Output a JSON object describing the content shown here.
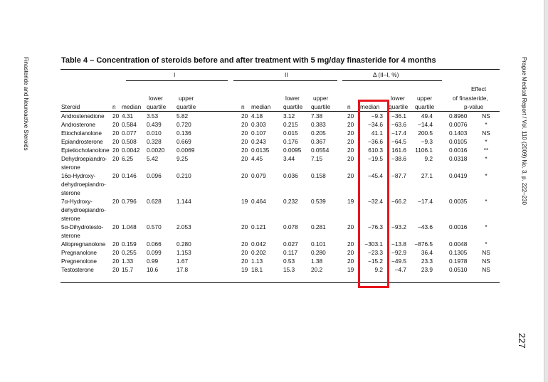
{
  "side_left": "Finasteride and Neuroactive Steroids",
  "side_right": "Prague Medical Report / Vol. 110 (2009) No. 3, p. 222–230",
  "page_number": "227",
  "table": {
    "title": "Table 4 – Concentration of steroids before and after treatment with 5 mg/day finasteride for 4 months",
    "groups": [
      "I",
      "II",
      "Δ (II–I, %)"
    ],
    "headers": {
      "steroid": "Steroid",
      "n": "n",
      "median": "median",
      "lower": [
        "lower",
        "quartile"
      ],
      "upper": [
        "upper",
        "quartile"
      ],
      "effect": [
        "Effect",
        "of finasteride,",
        "p-value"
      ]
    },
    "highlight_color": "#e8161e",
    "rows": [
      {
        "name": [
          "Androstenedione"
        ],
        "I": [
          "20",
          "4.31",
          "3.53",
          "5.82"
        ],
        "II": [
          "20",
          "4.18",
          "3.12",
          "7.38"
        ],
        "D": [
          "20",
          "−9.3",
          "−36.1",
          "49.4"
        ],
        "p": "0.8960",
        "sig": "NS"
      },
      {
        "name": [
          "Androsterone"
        ],
        "I": [
          "20",
          "0.584",
          "0.439",
          "0.720"
        ],
        "II": [
          "20",
          "0.303",
          "0.215",
          "0.383"
        ],
        "D": [
          "20",
          "−34.6",
          "−63.6",
          "−14.4"
        ],
        "p": "0.0076",
        "sig": "*"
      },
      {
        "name": [
          "Etiocholanolone"
        ],
        "I": [
          "20",
          "0.077",
          "0.010",
          "0.136"
        ],
        "II": [
          "20",
          "0.107",
          "0.015",
          "0.205"
        ],
        "D": [
          "20",
          "41.1",
          "−17.4",
          "200.5"
        ],
        "p": "0.1403",
        "sig": "NS"
      },
      {
        "name": [
          "Epiandrosterone"
        ],
        "I": [
          "20",
          "0.508",
          "0.328",
          "0.669"
        ],
        "II": [
          "20",
          "0.243",
          "0.176",
          "0.367"
        ],
        "D": [
          "20",
          "−36.6",
          "−64.5",
          "−9.3"
        ],
        "p": "0.0105",
        "sig": "*"
      },
      {
        "name": [
          "Epietiocholanolone"
        ],
        "I": [
          "20",
          "0.0042",
          "0.0020",
          "0.0069"
        ],
        "II": [
          "20",
          "0.0135",
          "0.0095",
          "0.0554"
        ],
        "D": [
          "20",
          "610.3",
          "161.6",
          "1106.1"
        ],
        "p": "0.0016",
        "sig": "**"
      },
      {
        "name": [
          "Dehydroepiandro-",
          "sterone"
        ],
        "I": [
          "20",
          "6.25",
          "5.42",
          "9.25"
        ],
        "II": [
          "20",
          "4.45",
          "3.44",
          "7.15"
        ],
        "D": [
          "20",
          "−19.5",
          "−38.6",
          "9.2"
        ],
        "p": "0.0318",
        "sig": "*"
      },
      {
        "name": [
          "16α-Hydroxy-",
          "dehydroepiandro-",
          "sterone"
        ],
        "I": [
          "20",
          "0.146",
          "0.096",
          "0.210"
        ],
        "II": [
          "20",
          "0.079",
          "0.036",
          "0.158"
        ],
        "D": [
          "20",
          "−45.4",
          "−87.7",
          "27.1"
        ],
        "p": "0.0419",
        "sig": "*"
      },
      {
        "name": [
          "7α-Hydroxy-",
          "dehydroepiandro-",
          "sterone"
        ],
        "I": [
          "20",
          "0.796",
          "0.628",
          "1.144"
        ],
        "II": [
          "19",
          "0.464",
          "0.232",
          "0.539"
        ],
        "D": [
          "19",
          "−32.4",
          "−66.2",
          "−17.4"
        ],
        "p": "0.0035",
        "sig": "*"
      },
      {
        "name": [
          "5α-Dihydrotesto-",
          "sterone"
        ],
        "I": [
          "20",
          "1.048",
          "0.570",
          "2.053"
        ],
        "II": [
          "20",
          "0.121",
          "0.078",
          "0.281"
        ],
        "D": [
          "20",
          "−76.3",
          "−93.2",
          "−43.6"
        ],
        "p": "0.0016",
        "sig": "*"
      },
      {
        "name": [
          "Allopregnanolone"
        ],
        "I": [
          "20",
          "0.159",
          "0.066",
          "0.280"
        ],
        "II": [
          "20",
          "0.042",
          "0.027",
          "0.101"
        ],
        "D": [
          "20",
          "−303.1",
          "−13.8",
          "−876.5"
        ],
        "p": "0.0048",
        "sig": "*"
      },
      {
        "name": [
          "Pregnanolone"
        ],
        "I": [
          "20",
          "0.255",
          "0.099",
          "1.153"
        ],
        "II": [
          "20",
          "0.202",
          "0.117",
          "0.280"
        ],
        "D": [
          "20",
          "−23.3",
          "−92.9",
          "36.4"
        ],
        "p": "0.1305",
        "sig": "NS"
      },
      {
        "name": [
          "Pregnenolone"
        ],
        "I": [
          "20",
          "1.33",
          "0.99",
          "1.67"
        ],
        "II": [
          "20",
          "1.13",
          "0.53",
          "1.38"
        ],
        "D": [
          "20",
          "−15.2",
          "−49.5",
          "23.3"
        ],
        "p": "0.1978",
        "sig": "NS"
      },
      {
        "name": [
          "Testosterone"
        ],
        "I": [
          "20",
          "15.7",
          "10.6",
          "17.8"
        ],
        "II": [
          "19",
          "18.1",
          "15.3",
          "20.2"
        ],
        "D": [
          "19",
          "9.2",
          "−4.7",
          "23.9"
        ],
        "p": "0.0510",
        "sig": "NS"
      }
    ]
  }
}
